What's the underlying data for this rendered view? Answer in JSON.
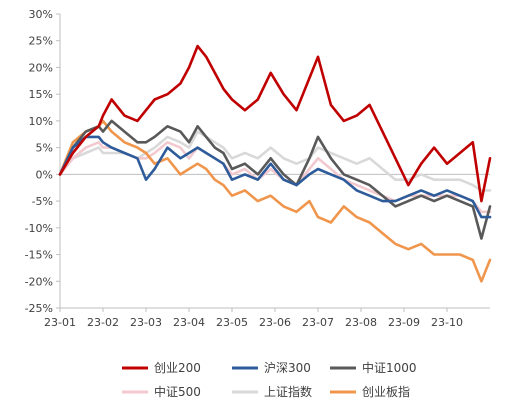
{
  "chart_data": {
    "type": "line",
    "title": "",
    "xlabel": "",
    "ylabel": "",
    "ylim": [
      -25,
      30
    ],
    "y_ticks": [
      "30%",
      "25%",
      "20%",
      "15%",
      "10%",
      "5%",
      "0%",
      "-5%",
      "-10%",
      "-15%",
      "-20%",
      "-25%"
    ],
    "x_ticks": [
      "23-01",
      "23-02",
      "23-03",
      "23-04",
      "23-05",
      "23-06",
      "23-07",
      "23-08",
      "23-09",
      "23-10"
    ],
    "x_tick_months": [
      0,
      1,
      2,
      3,
      4,
      5,
      6,
      7,
      8,
      9
    ],
    "grid": false,
    "legend_position": "bottom",
    "x": [
      0,
      0.3,
      0.6,
      0.9,
      1.0,
      1.2,
      1.5,
      1.8,
      2.0,
      2.2,
      2.5,
      2.8,
      3.0,
      3.2,
      3.4,
      3.6,
      3.8,
      4.0,
      4.3,
      4.6,
      4.9,
      5.2,
      5.5,
      5.8,
      6.0,
      6.3,
      6.6,
      6.9,
      7.2,
      7.5,
      7.8,
      8.1,
      8.4,
      8.7,
      9.0,
      9.3,
      9.6,
      9.8,
      10.0
    ],
    "series": [
      {
        "name": "创业200",
        "color": "#C00000",
        "values": [
          0,
          4,
          7,
          9,
          11,
          14,
          11,
          10,
          12,
          14,
          15,
          17,
          20,
          24,
          22,
          19,
          16,
          14,
          12,
          14,
          19,
          15,
          12,
          18,
          22,
          13,
          10,
          11,
          13,
          8,
          3,
          -2,
          2,
          5,
          2,
          4,
          6,
          -5,
          3
        ]
      },
      {
        "name": "沪深300",
        "color": "#2E5C9A",
        "values": [
          0,
          5,
          7,
          7,
          6,
          5,
          4,
          3,
          -1,
          1,
          5,
          3,
          4,
          5,
          4,
          3,
          2,
          -1,
          0,
          -1,
          2,
          -1,
          -2,
          0,
          1,
          0,
          -1,
          -3,
          -4,
          -5,
          -5,
          -4,
          -3,
          -4,
          -3,
          -4,
          -5,
          -8,
          -8
        ]
      },
      {
        "name": "中证1000",
        "color": "#595959",
        "values": [
          0,
          5,
          8,
          9,
          8,
          10,
          8,
          6,
          6,
          7,
          9,
          8,
          6,
          9,
          7,
          5,
          4,
          1,
          2,
          0,
          3,
          0,
          -2,
          3,
          7,
          3,
          0,
          -1,
          -2,
          -4,
          -6,
          -5,
          -4,
          -5,
          -4,
          -5,
          -6,
          -12,
          -6
        ]
      },
      {
        "name": "中证500",
        "color": "#F2C9CF",
        "values": [
          0,
          3,
          5,
          6,
          5,
          5,
          4,
          3,
          3,
          4,
          6,
          5,
          3,
          5,
          4,
          3,
          2,
          0,
          1,
          -1,
          1,
          -1,
          -2,
          1,
          3,
          1,
          -1,
          -2,
          -3,
          -4,
          -5,
          -4,
          -4,
          -4,
          -4,
          -4,
          -5,
          -7,
          -7
        ]
      },
      {
        "name": "上证指数",
        "color": "#D9D9D9",
        "values": [
          0,
          3,
          4,
          5,
          4,
          4,
          4,
          3,
          4,
          5,
          7,
          6,
          5,
          8,
          7,
          6,
          5,
          3,
          4,
          3,
          5,
          3,
          2,
          3,
          5,
          4,
          3,
          2,
          3,
          1,
          -1,
          -1,
          0,
          -1,
          -1,
          -1,
          -2,
          -3,
          -3
        ]
      },
      {
        "name": "创业板指",
        "color": "#F0954C",
        "values": [
          0,
          6,
          8,
          9,
          10,
          8,
          6,
          5,
          4,
          2,
          3,
          0,
          1,
          2,
          1,
          -1,
          -2,
          -4,
          -3,
          -5,
          -4,
          -6,
          -7,
          -5,
          -8,
          -9,
          -6,
          -8,
          -9,
          -11,
          -13,
          -14,
          -13,
          -15,
          -15,
          -15,
          -16,
          -20,
          -16
        ]
      }
    ]
  }
}
